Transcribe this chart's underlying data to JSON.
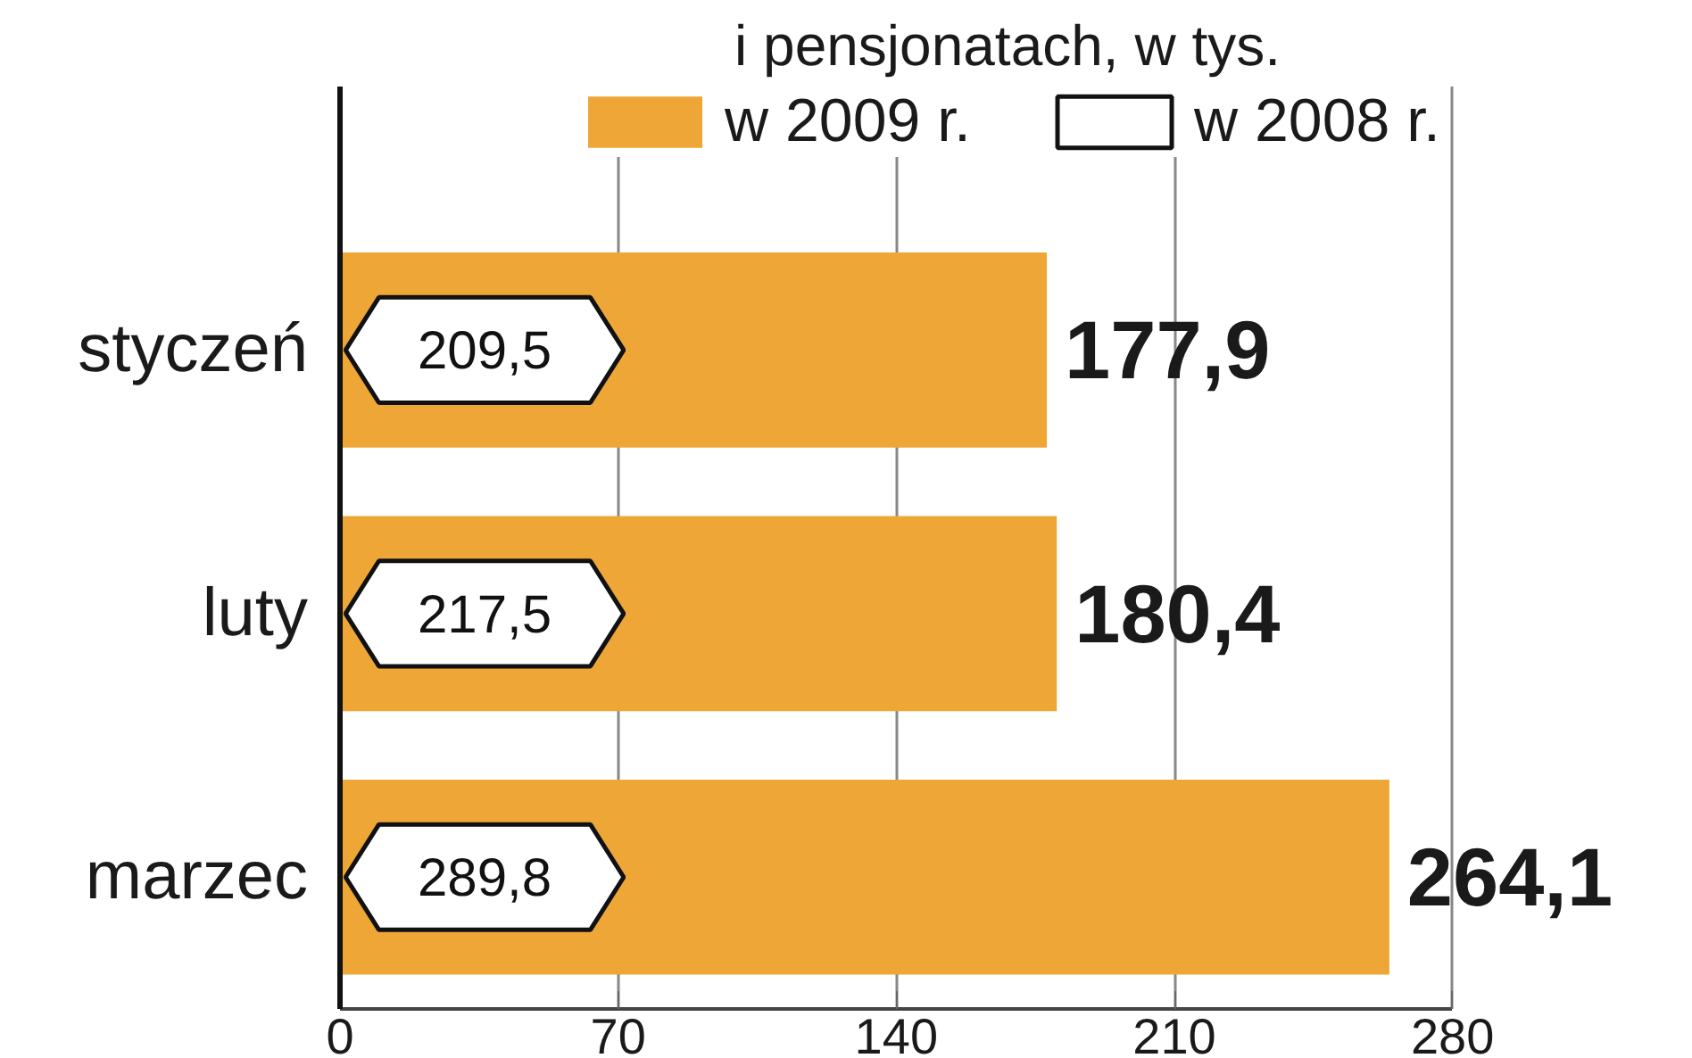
{
  "chart_data": {
    "type": "bar",
    "orientation": "horizontal",
    "title": "i pensjonatach, w tys.",
    "categories": [
      "styczeń",
      "luty",
      "marzec"
    ],
    "series": [
      {
        "name": "w 2009 r.",
        "color": "#eea737",
        "values": [
          177.9,
          180.4,
          264.1
        ],
        "value_labels": [
          "177,9",
          "180,4",
          "264,1"
        ]
      },
      {
        "name": "w 2008 r.",
        "type": "other",
        "values": [
          null,
          null,
          null
        ],
        "value_labels": [
          "209,5",
          "217,5",
          "289,8"
        ]
      }
    ],
    "xlim": [
      0,
      280
    ],
    "xticks": [
      0,
      70,
      140,
      210,
      280
    ],
    "grid": "x",
    "legend": "top"
  }
}
